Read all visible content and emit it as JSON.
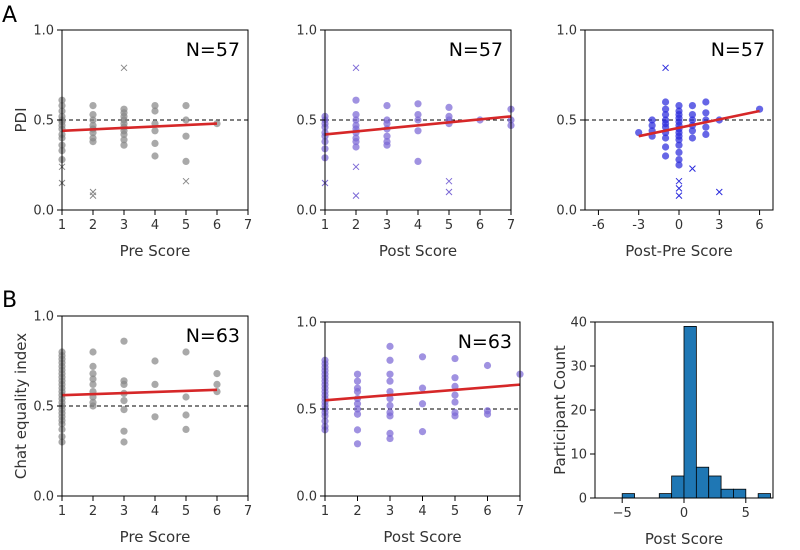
{
  "panel_letters": [
    "A",
    "B"
  ],
  "colors": {
    "grey": "#888888",
    "purple": "#7b68d6",
    "blue": "#2b2bdc",
    "fit": "#d62728",
    "bar": "#1f77b4"
  },
  "chart_data": [
    {
      "id": "A1",
      "type": "scatter",
      "n_label": "N=57",
      "xlabel": "Pre Score",
      "ylabel": "PDI",
      "xlim": [
        1,
        7
      ],
      "ylim": [
        0.0,
        1.0
      ],
      "xticks": [
        1,
        2,
        3,
        4,
        5,
        6,
        7
      ],
      "yticks": [
        0.0,
        0.5,
        1.0
      ],
      "yticklabels": [
        "0.0",
        "0.5",
        "1.0"
      ],
      "ref_line": 0.5,
      "color": "grey",
      "fit": [
        [
          1,
          0.44
        ],
        [
          6,
          0.48
        ]
      ],
      "points": [
        [
          1,
          0.61
        ],
        [
          1,
          0.58
        ],
        [
          1,
          0.55
        ],
        [
          1,
          0.52
        ],
        [
          1,
          0.5
        ],
        [
          1,
          0.49
        ],
        [
          1,
          0.47
        ],
        [
          1,
          0.45
        ],
        [
          1,
          0.42
        ],
        [
          1,
          0.4
        ],
        [
          1,
          0.36
        ],
        [
          1,
          0.33
        ],
        [
          1,
          0.28
        ],
        [
          2,
          0.58
        ],
        [
          2,
          0.53
        ],
        [
          2,
          0.5
        ],
        [
          2,
          0.47
        ],
        [
          2,
          0.45
        ],
        [
          2,
          0.43
        ],
        [
          2,
          0.4
        ],
        [
          2,
          0.38
        ],
        [
          3,
          0.56
        ],
        [
          3,
          0.54
        ],
        [
          3,
          0.52
        ],
        [
          3,
          0.5
        ],
        [
          3,
          0.48
        ],
        [
          3,
          0.46
        ],
        [
          3,
          0.44
        ],
        [
          3,
          0.42
        ],
        [
          3,
          0.39
        ],
        [
          3,
          0.36
        ],
        [
          4,
          0.58
        ],
        [
          4,
          0.55
        ],
        [
          4,
          0.48
        ],
        [
          4,
          0.44
        ],
        [
          4,
          0.37
        ],
        [
          4,
          0.3
        ],
        [
          5,
          0.58
        ],
        [
          5,
          0.5
        ],
        [
          5,
          0.41
        ],
        [
          5,
          0.27
        ],
        [
          6,
          0.48
        ]
      ],
      "outliers": [
        [
          1,
          0.24
        ],
        [
          1,
          0.15
        ],
        [
          2,
          0.1
        ],
        [
          2,
          0.08
        ],
        [
          3,
          0.79
        ],
        [
          5,
          0.16
        ]
      ]
    },
    {
      "id": "A2",
      "type": "scatter",
      "n_label": "N=57",
      "xlabel": "Post Score",
      "ylabel": "",
      "xlim": [
        1,
        7
      ],
      "ylim": [
        0.0,
        1.0
      ],
      "xticks": [
        1,
        2,
        3,
        4,
        5,
        6,
        7
      ],
      "yticks": [
        0.0,
        0.5,
        1.0
      ],
      "yticklabels": [
        "0.0",
        "0.5",
        "1.0"
      ],
      "ref_line": 0.5,
      "color": "purple",
      "fit": [
        [
          1,
          0.42
        ],
        [
          7,
          0.52
        ]
      ],
      "points": [
        [
          1,
          0.52
        ],
        [
          1,
          0.5
        ],
        [
          1,
          0.48
        ],
        [
          1,
          0.46
        ],
        [
          1,
          0.43
        ],
        [
          1,
          0.41
        ],
        [
          1,
          0.38
        ],
        [
          1,
          0.34
        ],
        [
          1,
          0.29
        ],
        [
          2,
          0.61
        ],
        [
          2,
          0.53
        ],
        [
          2,
          0.5
        ],
        [
          2,
          0.47
        ],
        [
          2,
          0.45
        ],
        [
          2,
          0.43
        ],
        [
          2,
          0.4
        ],
        [
          2,
          0.38
        ],
        [
          2,
          0.35
        ],
        [
          3,
          0.58
        ],
        [
          3,
          0.5
        ],
        [
          3,
          0.48
        ],
        [
          3,
          0.45
        ],
        [
          3,
          0.41
        ],
        [
          3,
          0.38
        ],
        [
          3,
          0.36
        ],
        [
          4,
          0.59
        ],
        [
          4,
          0.53
        ],
        [
          4,
          0.5
        ],
        [
          4,
          0.44
        ],
        [
          4,
          0.27
        ],
        [
          5,
          0.57
        ],
        [
          5,
          0.52
        ],
        [
          5,
          0.5
        ],
        [
          5,
          0.48
        ],
        [
          6,
          0.5
        ],
        [
          7,
          0.56
        ],
        [
          7,
          0.5
        ],
        [
          7,
          0.47
        ]
      ],
      "outliers": [
        [
          1,
          0.15
        ],
        [
          2,
          0.79
        ],
        [
          2,
          0.24
        ],
        [
          2,
          0.08
        ],
        [
          5,
          0.16
        ],
        [
          5,
          0.1
        ]
      ]
    },
    {
      "id": "A3",
      "type": "scatter",
      "n_label": "N=57",
      "xlabel": "Post-Pre Score",
      "ylabel": "",
      "xlim": [
        -7,
        7
      ],
      "ylim": [
        0.0,
        1.0
      ],
      "xticks": [
        -6,
        -3,
        0,
        3,
        6
      ],
      "yticks": [
        0.0,
        0.5,
        1.0
      ],
      "yticklabels": [
        "0.0",
        "0.5",
        "1.0"
      ],
      "ref_line": 0.5,
      "color": "blue",
      "fit": [
        [
          -3,
          0.41
        ],
        [
          6,
          0.55
        ]
      ],
      "points": [
        [
          -3,
          0.43
        ],
        [
          -2,
          0.5
        ],
        [
          -2,
          0.47
        ],
        [
          -2,
          0.44
        ],
        [
          -2,
          0.41
        ],
        [
          -1,
          0.6
        ],
        [
          -1,
          0.56
        ],
        [
          -1,
          0.53
        ],
        [
          -1,
          0.5
        ],
        [
          -1,
          0.48
        ],
        [
          -1,
          0.46
        ],
        [
          -1,
          0.43
        ],
        [
          -1,
          0.4
        ],
        [
          -1,
          0.35
        ],
        [
          -1,
          0.3
        ],
        [
          0,
          0.58
        ],
        [
          0,
          0.55
        ],
        [
          0,
          0.53
        ],
        [
          0,
          0.51
        ],
        [
          0,
          0.49
        ],
        [
          0,
          0.47
        ],
        [
          0,
          0.45
        ],
        [
          0,
          0.43
        ],
        [
          0,
          0.41
        ],
        [
          0,
          0.39
        ],
        [
          0,
          0.36
        ],
        [
          0,
          0.32
        ],
        [
          0,
          0.28
        ],
        [
          0,
          0.25
        ],
        [
          1,
          0.58
        ],
        [
          1,
          0.53
        ],
        [
          1,
          0.5
        ],
        [
          1,
          0.47
        ],
        [
          1,
          0.44
        ],
        [
          1,
          0.4
        ],
        [
          2,
          0.6
        ],
        [
          2,
          0.54
        ],
        [
          2,
          0.5
        ],
        [
          2,
          0.46
        ],
        [
          2,
          0.42
        ],
        [
          3,
          0.5
        ],
        [
          6,
          0.56
        ]
      ],
      "outliers": [
        [
          -1,
          0.79
        ],
        [
          0,
          0.16
        ],
        [
          0,
          0.12
        ],
        [
          0,
          0.08
        ],
        [
          1,
          0.23
        ],
        [
          3,
          0.1
        ]
      ]
    },
    {
      "id": "B1",
      "type": "scatter",
      "n_label": "N=63",
      "xlabel": "Pre Score",
      "ylabel": "Chat equality index",
      "xlim": [
        1,
        7
      ],
      "ylim": [
        0.0,
        1.0
      ],
      "xticks": [
        1,
        2,
        3,
        4,
        5,
        6,
        7
      ],
      "yticks": [
        0.0,
        0.5,
        1.0
      ],
      "yticklabels": [
        "0.0",
        "0.5",
        "1.0"
      ],
      "ref_line": 0.5,
      "color": "grey",
      "fit": [
        [
          1,
          0.56
        ],
        [
          6,
          0.59
        ]
      ],
      "points": [
        [
          1,
          0.8
        ],
        [
          1,
          0.78
        ],
        [
          1,
          0.76
        ],
        [
          1,
          0.74
        ],
        [
          1,
          0.72
        ],
        [
          1,
          0.7
        ],
        [
          1,
          0.68
        ],
        [
          1,
          0.66
        ],
        [
          1,
          0.64
        ],
        [
          1,
          0.62
        ],
        [
          1,
          0.6
        ],
        [
          1,
          0.58
        ],
        [
          1,
          0.56
        ],
        [
          1,
          0.54
        ],
        [
          1,
          0.52
        ],
        [
          1,
          0.5
        ],
        [
          1,
          0.48
        ],
        [
          1,
          0.46
        ],
        [
          1,
          0.44
        ],
        [
          1,
          0.42
        ],
        [
          1,
          0.4
        ],
        [
          1,
          0.37
        ],
        [
          1,
          0.33
        ],
        [
          1,
          0.3
        ],
        [
          2,
          0.8
        ],
        [
          2,
          0.72
        ],
        [
          2,
          0.68
        ],
        [
          2,
          0.65
        ],
        [
          2,
          0.62
        ],
        [
          2,
          0.58
        ],
        [
          2,
          0.55
        ],
        [
          2,
          0.52
        ],
        [
          2,
          0.5
        ],
        [
          3,
          0.86
        ],
        [
          3,
          0.64
        ],
        [
          3,
          0.62
        ],
        [
          3,
          0.57
        ],
        [
          3,
          0.53
        ],
        [
          3,
          0.48
        ],
        [
          3,
          0.36
        ],
        [
          3,
          0.3
        ],
        [
          4,
          0.75
        ],
        [
          4,
          0.62
        ],
        [
          4,
          0.44
        ],
        [
          5,
          0.8
        ],
        [
          5,
          0.55
        ],
        [
          5,
          0.45
        ],
        [
          5,
          0.37
        ],
        [
          6,
          0.68
        ],
        [
          6,
          0.62
        ],
        [
          6,
          0.58
        ]
      ],
      "outliers": []
    },
    {
      "id": "B2",
      "type": "scatter",
      "n_label": "N=63",
      "xlabel": "Post Score",
      "ylabel": "",
      "xlim": [
        1,
        7
      ],
      "ylim": [
        0.0,
        1.0
      ],
      "xticks": [
        1,
        2,
        3,
        4,
        5,
        6,
        7
      ],
      "yticks": [
        0.0,
        0.5,
        1.0
      ],
      "yticklabels": [
        "0.0",
        "0.5",
        "1.0"
      ],
      "ref_line": 0.5,
      "color": "purple",
      "fit": [
        [
          1,
          0.55
        ],
        [
          7,
          0.64
        ]
      ],
      "points": [
        [
          1,
          0.78
        ],
        [
          1,
          0.76
        ],
        [
          1,
          0.74
        ],
        [
          1,
          0.72
        ],
        [
          1,
          0.7
        ],
        [
          1,
          0.68
        ],
        [
          1,
          0.66
        ],
        [
          1,
          0.64
        ],
        [
          1,
          0.62
        ],
        [
          1,
          0.6
        ],
        [
          1,
          0.58
        ],
        [
          1,
          0.56
        ],
        [
          1,
          0.54
        ],
        [
          1,
          0.52
        ],
        [
          1,
          0.5
        ],
        [
          1,
          0.48
        ],
        [
          1,
          0.46
        ],
        [
          1,
          0.43
        ],
        [
          1,
          0.4
        ],
        [
          1,
          0.38
        ],
        [
          2,
          0.7
        ],
        [
          2,
          0.66
        ],
        [
          2,
          0.62
        ],
        [
          2,
          0.6
        ],
        [
          2,
          0.56
        ],
        [
          2,
          0.53
        ],
        [
          2,
          0.5
        ],
        [
          2,
          0.47
        ],
        [
          2,
          0.38
        ],
        [
          2,
          0.3
        ],
        [
          3,
          0.86
        ],
        [
          3,
          0.78
        ],
        [
          3,
          0.7
        ],
        [
          3,
          0.66
        ],
        [
          3,
          0.6
        ],
        [
          3,
          0.56
        ],
        [
          3,
          0.52
        ],
        [
          3,
          0.48
        ],
        [
          3,
          0.46
        ],
        [
          3,
          0.36
        ],
        [
          3,
          0.33
        ],
        [
          4,
          0.8
        ],
        [
          4,
          0.62
        ],
        [
          4,
          0.53
        ],
        [
          4,
          0.37
        ],
        [
          5,
          0.79
        ],
        [
          5,
          0.68
        ],
        [
          5,
          0.63
        ],
        [
          5,
          0.58
        ],
        [
          5,
          0.54
        ],
        [
          5,
          0.48
        ],
        [
          5,
          0.46
        ],
        [
          6,
          0.75
        ],
        [
          6,
          0.49
        ],
        [
          6,
          0.47
        ],
        [
          7,
          0.7
        ]
      ],
      "outliers": []
    },
    {
      "id": "B3",
      "type": "bar",
      "n_label": "",
      "xlabel": "Post Score",
      "ylabel": "Participant Count",
      "xlim": [
        -7.2,
        7.2
      ],
      "ylim": [
        0,
        40
      ],
      "xticks": [
        -5,
        0,
        5
      ],
      "xticklabels": [
        "−5",
        "0",
        "5"
      ],
      "yticks": [
        0,
        10,
        20,
        30,
        40
      ],
      "yticklabels": [
        "0",
        "10",
        "20",
        "30",
        "40"
      ],
      "bin_width": 1,
      "color": "bar",
      "bins": [
        [
          -4.5,
          1
        ],
        [
          -1.5,
          1
        ],
        [
          -0.5,
          5
        ],
        [
          0.5,
          39
        ],
        [
          1.5,
          7
        ],
        [
          2.5,
          5
        ],
        [
          3.5,
          2
        ],
        [
          4.5,
          2
        ],
        [
          6.5,
          1
        ]
      ]
    }
  ]
}
